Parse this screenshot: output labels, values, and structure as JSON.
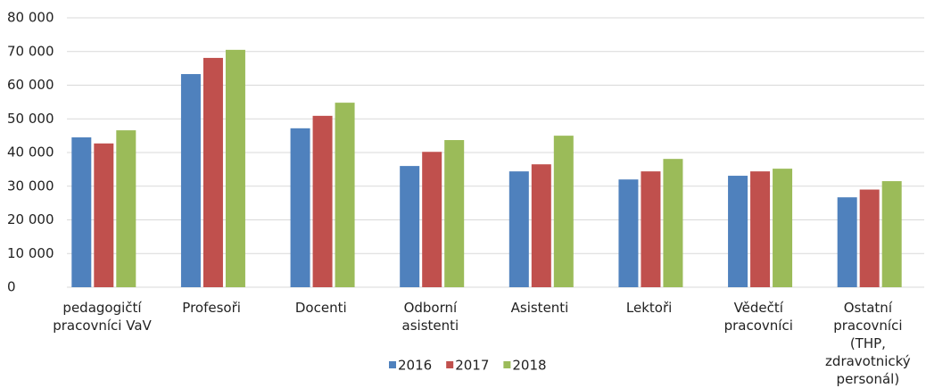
{
  "chart_data": {
    "type": "bar",
    "categories": [
      "pedagogičtí pracovníci VaV",
      "Profesoři",
      "Docenti",
      "Odborní asistenti",
      "Asistenti",
      "Lektoři",
      "Vědečtí pracovníci",
      "Ostatní pracovníci (THP, zdravotnický personál)"
    ],
    "series": [
      {
        "name": "2016",
        "color": "#4f81bd",
        "values": [
          44500,
          63300,
          47200,
          36000,
          34400,
          32000,
          33100,
          26700
        ]
      },
      {
        "name": "2017",
        "color": "#c0504d",
        "values": [
          42700,
          68100,
          50900,
          40200,
          36500,
          34400,
          34400,
          29000
        ]
      },
      {
        "name": "2018",
        "color": "#9bbb59",
        "values": [
          46600,
          70500,
          54800,
          43700,
          45000,
          38100,
          35200,
          31500
        ]
      }
    ],
    "ylim": [
      0,
      80000
    ],
    "yticks": [
      0,
      {
        "value": 10000,
        "label": "10 000"
      },
      {
        "value": 20000,
        "label": "20 000"
      },
      {
        "value": 30000,
        "label": "30 000"
      },
      {
        "value": 40000,
        "label": "40 000"
      },
      {
        "value": 50000,
        "label": "50 000"
      },
      {
        "value": 60000,
        "label": "60 000"
      },
      {
        "value": 70000,
        "label": "70 000"
      },
      {
        "value": 80000,
        "label": "80 000"
      }
    ],
    "grid": true,
    "legend": "bottom"
  }
}
